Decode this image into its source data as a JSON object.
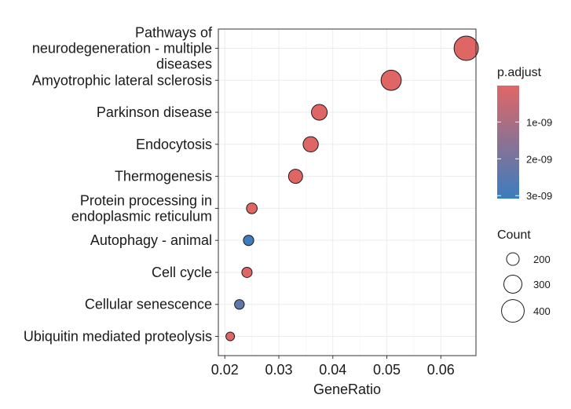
{
  "chart_data": {
    "type": "scatter",
    "title": "",
    "xlabel": "GeneRatio",
    "ylabel": "",
    "xlim": [
      0.0188,
      0.0665
    ],
    "x_ticks": [
      0.02,
      0.03,
      0.04,
      0.05,
      0.06
    ],
    "x_tick_labels": [
      "0.02",
      "0.03",
      "0.04",
      "0.05",
      "0.06"
    ],
    "grid": true,
    "legend_position": "right",
    "categories": [
      [
        "Pathways of",
        "neurodegeneration - multiple",
        "diseases"
      ],
      [
        "Amyotrophic lateral sclerosis"
      ],
      [
        "Parkinson disease"
      ],
      [
        "Endocytosis"
      ],
      [
        "Thermogenesis"
      ],
      [
        "Protein processing in",
        "endoplasmic reticulum"
      ],
      [
        "Autophagy - animal"
      ],
      [
        "Cell cycle"
      ],
      [
        "Cellular senescence"
      ],
      [
        "Ubiquitin mediated proteolysis"
      ]
    ],
    "points": [
      {
        "x": 0.0647,
        "count": 440,
        "p_adjust": 1e-11
      },
      {
        "x": 0.0508,
        "count": 345,
        "p_adjust": 1e-11
      },
      {
        "x": 0.0375,
        "count": 255,
        "p_adjust": 1e-11
      },
      {
        "x": 0.0359,
        "count": 245,
        "p_adjust": 5e-11
      },
      {
        "x": 0.0331,
        "count": 225,
        "p_adjust": 1e-11
      },
      {
        "x": 0.025,
        "count": 170,
        "p_adjust": 1e-11
      },
      {
        "x": 0.0244,
        "count": 165,
        "p_adjust": 3e-09
      },
      {
        "x": 0.0241,
        "count": 163,
        "p_adjust": 1e-11
      },
      {
        "x": 0.0227,
        "count": 155,
        "p_adjust": 2.4e-09
      },
      {
        "x": 0.021,
        "count": 140,
        "p_adjust": 1e-11
      }
    ],
    "color_legend": {
      "title": "p.adjust",
      "range": [
        1e-11,
        3.08e-09
      ],
      "ticks": [
        1e-09,
        2e-09,
        3e-09
      ],
      "tick_labels": [
        "1e-09",
        "2e-09",
        "3e-09"
      ],
      "color_low": "#e06666",
      "color_high": "#3a7dbf"
    },
    "size_legend": {
      "title": "Count",
      "values": [
        200,
        300,
        400
      ],
      "labels": [
        "200",
        "300",
        "400"
      ]
    },
    "point_stroke_color": "#1a1a1a"
  }
}
